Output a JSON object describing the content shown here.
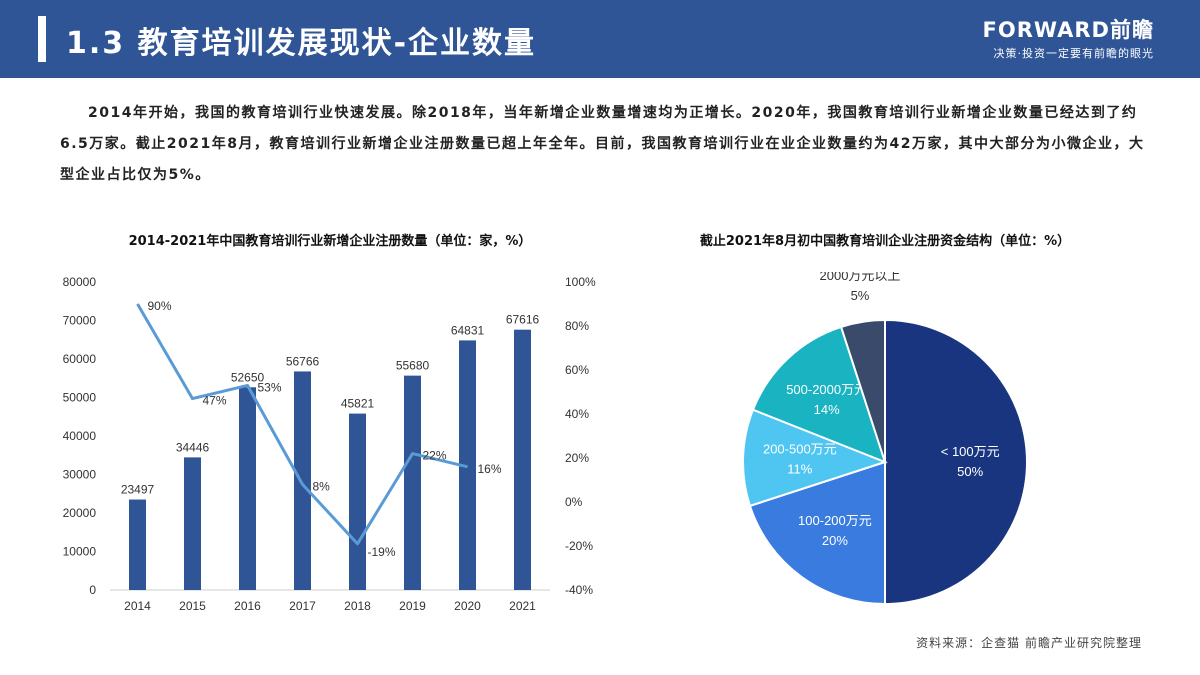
{
  "header": {
    "title": "1.3 教育培训发展现状-企业数量",
    "brand_logo": "FORWARD前瞻",
    "brand_slogan": "决策·投资一定要有前瞻的眼光"
  },
  "intro_text": "2014年开始，我国的教育培训行业快速发展。除2018年，当年新增企业数量增速均为正增长。2020年，我国教育培训行业新增企业数量已经达到了约6.5万家。截止2021年8月，教育培训行业新增企业注册数量已超上年全年。目前，我国教育培训行业在业企业数量约为42万家，其中大部分为小微企业，大型企业占比仅为5%。",
  "source_text": "资料来源：企查猫  前瞻产业研究院整理",
  "chart_data": [
    {
      "type": "bar",
      "title": "2014-2021年中国教育培训行业新增企业注册数量（单位：家，%）",
      "categories": [
        "2014",
        "2015",
        "2016",
        "2017",
        "2018",
        "2019",
        "2020",
        "2021"
      ],
      "series": [
        {
          "type": "bar",
          "values": [
            23497,
            34446,
            52650,
            56766,
            45821,
            55680,
            64831,
            67616
          ],
          "color": "#2f5597"
        },
        {
          "type": "line",
          "axis": "right",
          "values": [
            90,
            47,
            53,
            8,
            -19,
            22,
            16,
            null
          ],
          "labels": [
            "90%",
            "47%",
            "53%",
            "8%",
            "-19%",
            "22%",
            "16%",
            ""
          ],
          "color": "#5b9bd5"
        }
      ],
      "y_left": {
        "min": 0,
        "max": 80000,
        "ticks": [
          "0",
          "10000",
          "20000",
          "30000",
          "40000",
          "50000",
          "60000",
          "70000",
          "80000"
        ]
      },
      "y_right": {
        "min": -40,
        "max": 100,
        "ticks": [
          "-40%",
          "-20%",
          "0%",
          "20%",
          "40%",
          "60%",
          "80%",
          "100%"
        ]
      },
      "grid": false
    },
    {
      "type": "pie",
      "title": "截止2021年8月初中国教育培训企业注册资金结构（单位：%）",
      "slices": [
        {
          "label": "< 100万元",
          "value": 50,
          "value_label": "50%",
          "color": "#1a3580"
        },
        {
          "label": "100-200万元",
          "value": 20,
          "value_label": "20%",
          "color": "#3a7be0"
        },
        {
          "label": "200-500万元",
          "value": 11,
          "value_label": "11%",
          "color": "#4fc6f2"
        },
        {
          "label": "500-2000万元",
          "value": 14,
          "value_label": "14%",
          "color": "#19b3c1"
        },
        {
          "label": "2000万元以上",
          "value": 5,
          "value_label": "5%",
          "color": "#3a4a6b"
        }
      ]
    }
  ]
}
